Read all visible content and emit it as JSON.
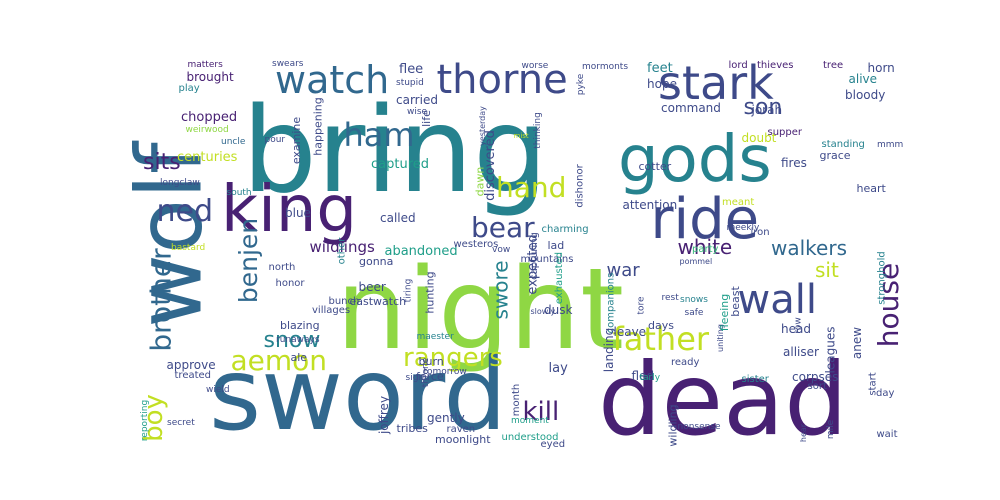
{
  "palette": {
    "dark_purple": "#482173",
    "indigo": "#3e4a89",
    "blue": "#31688e",
    "teal": "#26828e",
    "green_teal": "#1f9e89",
    "green": "#35b779",
    "lime": "#8fd744",
    "yellow": "#c2df23",
    "light_yellow": "#e2e418"
  },
  "words": [
    "night",
    "bring",
    "sword",
    "wolf",
    "dead",
    "gods",
    "king",
    "ride",
    "stark",
    "thorne",
    "watch",
    "wall",
    "ham",
    "hand",
    "ned",
    "bear",
    "father",
    "house",
    "brother",
    "benjen",
    "aemon",
    "rangers",
    "kill",
    "boy",
    "snow",
    "white",
    "walkers",
    "sit",
    "war",
    "sits",
    "son",
    "swore",
    "wildlings",
    "abandoned",
    "captured",
    "called",
    "discovered",
    "expected",
    "flee",
    "carried",
    "feet",
    "hope",
    "command",
    "jorah",
    "bloody",
    "alive",
    "horn",
    "lord",
    "thieves",
    "tree",
    "mormonts",
    "worse",
    "swears",
    "matters",
    "play",
    "stupid",
    "wise",
    "chopped",
    "brought",
    "weirwood",
    "centuries",
    "uncle",
    "pour",
    "examine",
    "happening",
    "gonna",
    "beer",
    "dusk",
    "dawn",
    "life",
    "thinking",
    "dishonor",
    "pyke",
    "cotter",
    "doubt",
    "supper",
    "standing",
    "mmm",
    "mist",
    "yesterday",
    "longclaw",
    "south",
    "blue",
    "grace",
    "fires",
    "heart",
    "attention",
    "meekly",
    "meant",
    "iron",
    "lad",
    "party",
    "charming",
    "mountains",
    "pommel",
    "westeros",
    "vow",
    "slowly",
    "north",
    "honor",
    "bastard",
    "other",
    "villages",
    "eastwatch",
    "hunting",
    "exhausted",
    "capturing",
    "bunch",
    "tiring",
    "maester",
    "throne",
    "runaways",
    "ale",
    "blazing",
    "burn",
    "force",
    "tore",
    "uniting",
    "beast",
    "head",
    "alliser",
    "safe",
    "snows",
    "rest",
    "companions",
    "leave",
    "days",
    "fleeing",
    "row",
    "stronghold",
    "leagues",
    "anew",
    "corpses",
    "ready",
    "sister",
    "fled",
    "landing",
    "approve",
    "treated",
    "wield",
    "reporting",
    "secret",
    "sign",
    "tomorrow",
    "lay",
    "joffrey",
    "eyed",
    "gently",
    "tribes",
    "raven",
    "moonlight",
    "month",
    "moment",
    "understood",
    "wildling",
    "tarly",
    "nonsense",
    "mile",
    "sort",
    "hear",
    "start",
    "day",
    "wait"
  ]
}
